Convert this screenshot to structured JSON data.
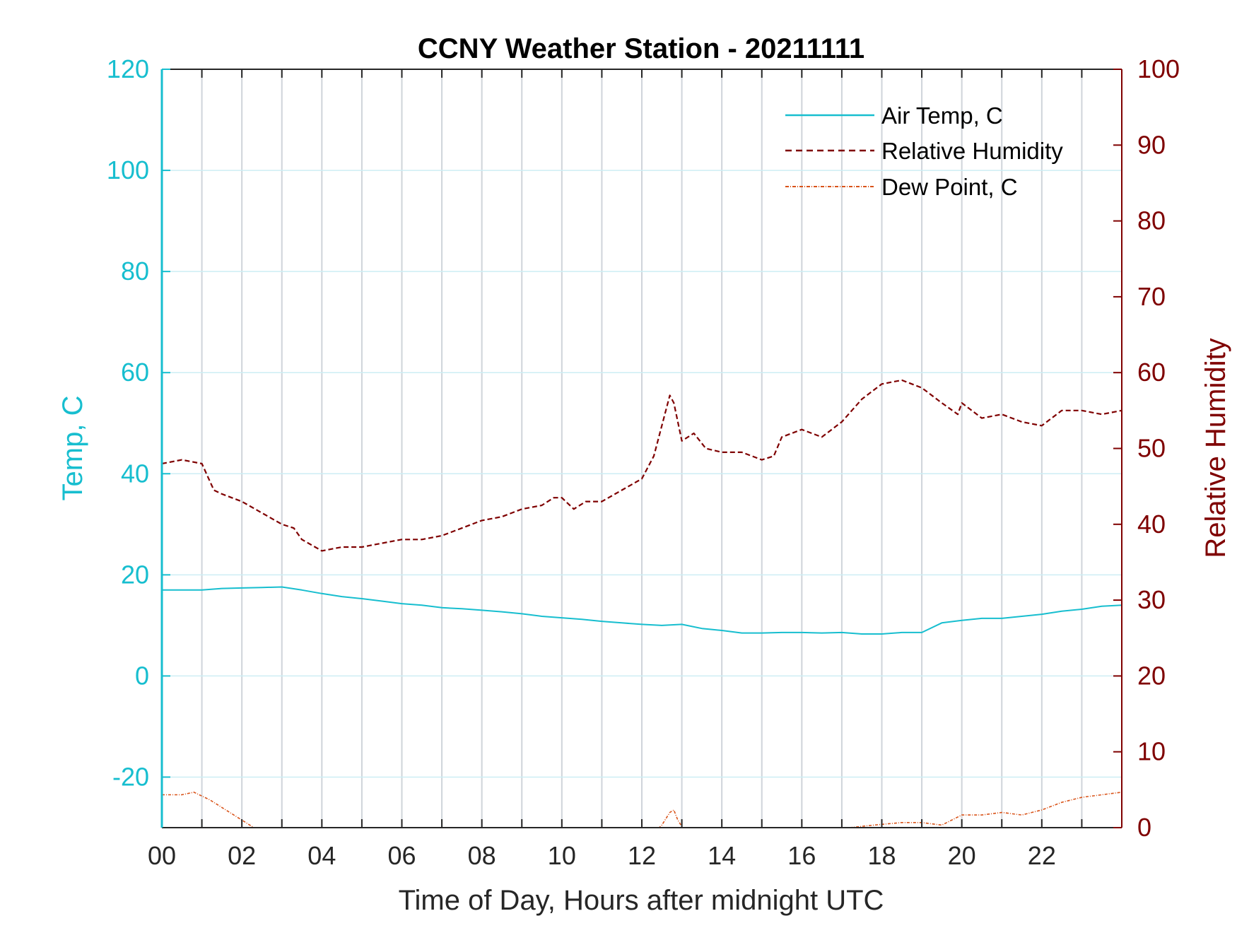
{
  "chart_data": {
    "type": "line",
    "title": "CCNY Weather Station - 20211111",
    "xlabel": "Time of Day, Hours after midnight UTC",
    "ylabel_left": "Temp, C",
    "ylabel_right": "Relative Humidity",
    "xlim": [
      0,
      24
    ],
    "ylim_left": [
      -30,
      120
    ],
    "ylim_right": [
      0,
      100
    ],
    "x_ticks": [
      0,
      2,
      4,
      6,
      8,
      10,
      12,
      14,
      16,
      18,
      20,
      22
    ],
    "x_tick_labels": [
      "00",
      "02",
      "04",
      "06",
      "08",
      "10",
      "12",
      "14",
      "16",
      "18",
      "20",
      "22"
    ],
    "y_left_ticks": [
      -20,
      0,
      20,
      40,
      60,
      80,
      100,
      120
    ],
    "y_left_tick_labels": [
      "-20",
      "0",
      "20",
      "40",
      "60",
      "80",
      "100",
      "120"
    ],
    "y_right_ticks": [
      0,
      10,
      20,
      30,
      40,
      50,
      60,
      70,
      80,
      90,
      100
    ],
    "y_right_tick_labels": [
      "0",
      "10",
      "20",
      "30",
      "40",
      "50",
      "60",
      "70",
      "80",
      "90",
      "100"
    ],
    "grid": "vertical lines every hour; horizontal lines at left-axis ticks",
    "legend_position": "top-right",
    "colors": {
      "temp": "#17becf",
      "rh": "#7f0000",
      "dew": "#d95319",
      "left_axis": "#17becf",
      "right_axis": "#7f0000",
      "grid": "#cfd4da"
    },
    "series": [
      {
        "name": "Air Temp, C",
        "axis": "left",
        "style": "solid",
        "x": [
          0,
          0.5,
          1,
          1.5,
          2,
          2.5,
          3,
          3.5,
          4,
          4.5,
          5,
          5.5,
          6,
          6.5,
          7,
          7.5,
          8,
          8.5,
          9,
          9.5,
          10,
          10.5,
          11,
          11.5,
          12,
          12.5,
          13,
          13.5,
          14,
          14.5,
          15,
          15.5,
          16,
          16.5,
          17,
          17.5,
          18,
          18.5,
          19,
          19.5,
          20,
          20.5,
          21,
          21.5,
          22,
          22.5,
          23,
          23.5,
          24
        ],
        "values": [
          17,
          17,
          17,
          17.3,
          17.4,
          17.5,
          17.6,
          17,
          16.3,
          15.7,
          15.3,
          14.8,
          14.3,
          14,
          13.5,
          13.3,
          13,
          12.7,
          12.3,
          11.8,
          11.5,
          11.2,
          10.8,
          10.5,
          10.2,
          10,
          10.2,
          9.4,
          9,
          8.5,
          8.5,
          8.6,
          8.6,
          8.5,
          8.6,
          8.3,
          8.3,
          8.6,
          8.6,
          10.5,
          11,
          11.4,
          11.4,
          11.8,
          12.2,
          12.8,
          13.2,
          13.8,
          14
        ]
      },
      {
        "name": "Relative Humidity",
        "axis": "right",
        "style": "dashed",
        "x": [
          0,
          0.5,
          1,
          1.3,
          1.5,
          2,
          2.5,
          3,
          3.3,
          3.5,
          4,
          4.5,
          5,
          5.5,
          6,
          6.5,
          7,
          7.5,
          8,
          8.5,
          9,
          9.5,
          9.8,
          10,
          10.3,
          10.6,
          11,
          11.5,
          12,
          12.3,
          12.5,
          12.7,
          12.8,
          13,
          13.3,
          13.6,
          14,
          14.5,
          15,
          15.3,
          15.5,
          16,
          16.5,
          17,
          17.5,
          18,
          18.5,
          19,
          19.5,
          19.9,
          20,
          20.5,
          21,
          21.5,
          22,
          22.5,
          23,
          23.5,
          24
        ],
        "values": [
          48,
          48.5,
          48,
          44.5,
          44,
          43,
          41.5,
          40,
          39.5,
          38,
          36.5,
          37,
          37,
          37.5,
          38,
          38,
          38.5,
          39.5,
          40.5,
          41,
          42,
          42.5,
          43.5,
          43.5,
          42,
          43,
          43,
          44.5,
          46,
          49,
          53,
          57,
          56,
          51,
          52,
          50,
          49.5,
          49.5,
          48.5,
          49,
          51.5,
          52.5,
          51.5,
          53.5,
          56.5,
          58.5,
          59,
          58,
          56,
          54.5,
          56,
          54,
          54.5,
          53.5,
          53,
          55,
          55,
          54.5,
          55
        ]
      },
      {
        "name": "Dew Point, C",
        "axis": "left",
        "style": "dash-dot",
        "x": [
          0,
          0.5,
          0.8,
          1.2,
          1.6,
          2,
          2.3,
          2.6,
          12.3,
          12.5,
          12.7,
          12.8,
          12.9,
          13.1,
          17.2,
          17.8,
          18.5,
          19,
          19.5,
          20,
          20.5,
          21,
          21.5,
          22,
          22.5,
          23,
          23.5,
          24
        ],
        "values": [
          -23.5,
          -23.5,
          -23,
          -24.5,
          -26.5,
          -28.5,
          -30,
          -31,
          -31,
          -29.5,
          -27,
          -26.5,
          -28.5,
          -31,
          -30,
          -29.5,
          -29,
          -29,
          -29.5,
          -27.5,
          -27.5,
          -27,
          -27.5,
          -26.5,
          -25,
          -24,
          -23.5,
          -23
        ]
      }
    ]
  }
}
